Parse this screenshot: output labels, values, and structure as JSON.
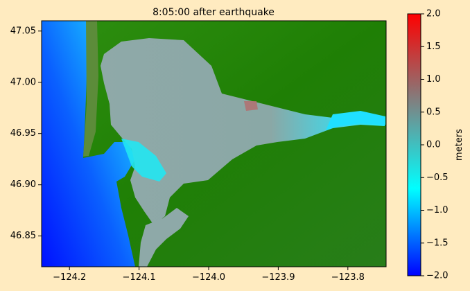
{
  "chart_data": {
    "type": "heatmap",
    "title": "8:05:00 after earthquake",
    "xlabel": "",
    "ylabel": "",
    "xlim": [
      -124.24,
      -123.745
    ],
    "ylim": [
      46.82,
      47.06
    ],
    "x_ticks": [
      -124.2,
      -124.1,
      -124.0,
      -123.9,
      -123.8
    ],
    "x_tick_labels": [
      "−124.2",
      "−124.1",
      "−124.0",
      "−123.9",
      "−123.8"
    ],
    "y_ticks": [
      46.85,
      46.9,
      46.95,
      47.0,
      47.05
    ],
    "y_tick_labels": [
      "46.85",
      "46.90",
      "46.95",
      "47.00",
      "47.05"
    ],
    "colorbar": {
      "label": "meters",
      "range": [
        -2.0,
        2.0
      ],
      "ticks": [
        -2.0,
        -1.5,
        -1.0,
        -0.5,
        0.0,
        0.5,
        1.0,
        1.5,
        2.0
      ],
      "tick_labels": [
        "−2.0",
        "−1.5",
        "−1.0",
        "−0.5",
        "0.0",
        "0.5",
        "1.0",
        "1.5",
        "2.0"
      ],
      "colors": [
        "#0000ff",
        "#00ffff",
        "#808080",
        "#ff0000"
      ]
    },
    "land_color": "#1f8a00",
    "grid": false
  }
}
